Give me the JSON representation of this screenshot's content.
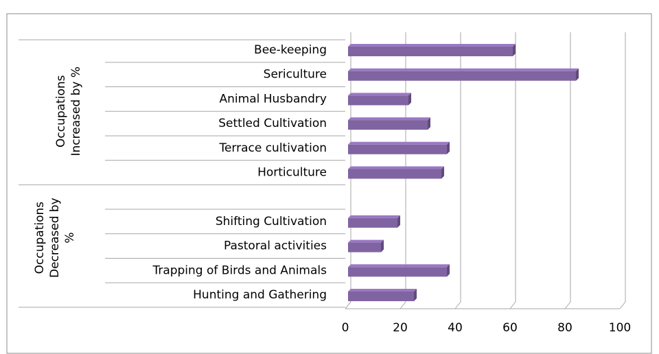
{
  "chart_data": {
    "type": "bar",
    "orientation": "horizontal",
    "color": "#8064a2",
    "xlim": [
      0,
      100
    ],
    "xticks": [
      0,
      20,
      40,
      60,
      80,
      100
    ],
    "grid": true,
    "groups": [
      {
        "label_lines": [
          "Occupations",
          "Increased by %"
        ],
        "categories": [
          "Bee-keeping",
          "Sericulture",
          "Animal Husbandry",
          "Settled Cultivation",
          "Terrace cultivation",
          "Horticulture"
        ],
        "values": [
          61,
          84,
          23,
          30,
          37,
          35
        ]
      },
      {
        "label_lines": [
          "Occupations",
          "Decreased by",
          "%"
        ],
        "categories": [
          null,
          "Shifting Cultivation",
          "Pastoral activities",
          "Trapping of Birds and Animals",
          "Hunting and Gathering"
        ],
        "values": [
          null,
          19,
          13,
          37,
          25
        ]
      }
    ]
  }
}
